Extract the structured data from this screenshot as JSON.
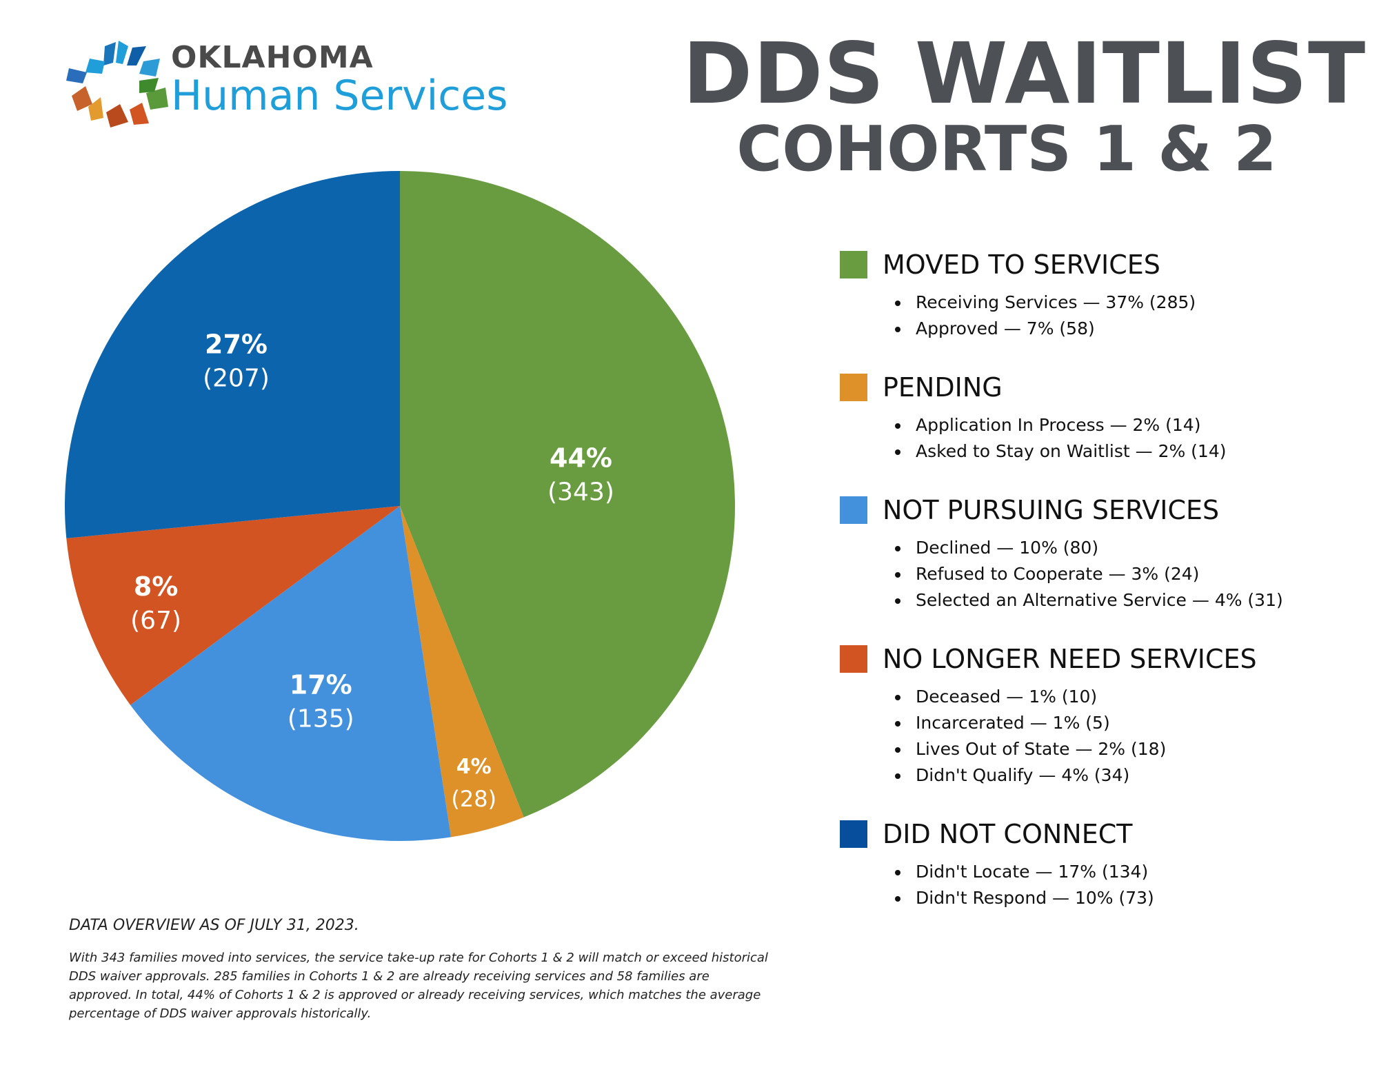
{
  "organization": {
    "line1": "OKLAHOMA",
    "line2": "Human Services"
  },
  "title": {
    "line1": "DDS WAITLIST",
    "line2": "COHORTS 1 & 2"
  },
  "colors": {
    "moved": "#699c41",
    "pending": "#de9129",
    "not_pursuing": "#4391dc",
    "no_longer_need": "#d35423",
    "did_not_connect": "#0c64ad",
    "legend_did_not_connect": "#074f9c",
    "title_gray": "#4d5055",
    "brand_blue": "#1f9ed9"
  },
  "chart_data": {
    "type": "pie",
    "slices": [
      {
        "label": "Moved to Services",
        "value": 343,
        "percent": "44%",
        "count": "(343)",
        "color": "#699c41"
      },
      {
        "label": "Pending",
        "value": 28,
        "percent": "4%",
        "count": "(28)",
        "color": "#de9129"
      },
      {
        "label": "Not Pursuing Services",
        "value": 135,
        "percent": "17%",
        "count": "(135)",
        "color": "#4391dc"
      },
      {
        "label": "No Longer Need Services",
        "value": 67,
        "percent": "8%",
        "count": "(67)",
        "color": "#d35423"
      },
      {
        "label": "Did Not Connect",
        "value": 207,
        "percent": "27%",
        "count": "(207)",
        "color": "#0c64ad"
      }
    ]
  },
  "legend": [
    {
      "heading": "MOVED TO SERVICES",
      "color": "#699c41",
      "items": [
        "Receiving Services — 37% (285)",
        "Approved — 7% (58)"
      ]
    },
    {
      "heading": "PENDING",
      "color": "#de9129",
      "items": [
        "Application In Process — 2% (14)",
        "Asked to Stay on Waitlist — 2% (14)"
      ]
    },
    {
      "heading": "NOT PURSUING SERVICES",
      "color": "#4391dc",
      "items": [
        "Declined — 10% (80)",
        "Refused to Cooperate — 3% (24)",
        "Selected an Alternative Service — 4% (31)"
      ]
    },
    {
      "heading": "NO LONGER NEED SERVICES",
      "color": "#d35423",
      "items": [
        "Deceased — 1% (10)",
        "Incarcerated — 1% (5)",
        "Lives Out of State — 2% (18)",
        "Didn't Qualify — 4% (34)"
      ]
    },
    {
      "heading": "DID NOT CONNECT",
      "color": "#074f9c",
      "items": [
        "Didn't Locate — 17% (134)",
        "Didn't Respond — 10% (73)"
      ]
    }
  ],
  "footnote": {
    "as_of": "DATA OVERVIEW AS OF JULY 31, 2023.",
    "text": "With 343 families moved into services, the service take-up rate for Cohorts 1 & 2 will match or exceed historical DDS waiver approvals. 285 families in Cohorts 1 & 2 are already receiving services and 58 families are approved. In total, 44% of Cohorts 1 & 2 is approved or already receiving services, which matches the average percentage of DDS waiver approvals historically."
  }
}
